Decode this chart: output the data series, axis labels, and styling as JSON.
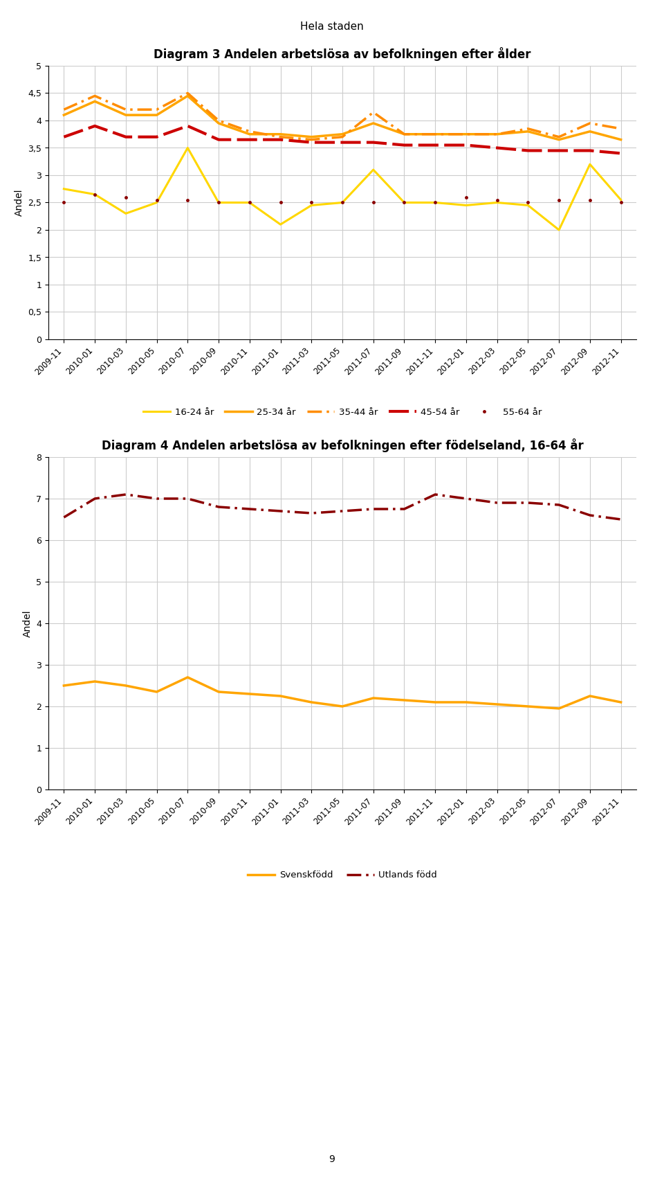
{
  "title_top": "Hela staden",
  "chart1_title": "Diagram 3 Andelen arbetslösa av befolkningen efter ålder",
  "chart2_title": "Diagram 4 Andelen arbetslösa av befolkningen efter födelseland, 16-64 år",
  "page_number": "9",
  "x_labels": [
    "2009-11",
    "2010-01",
    "2010-03",
    "2010-05",
    "2010-07",
    "2010-09",
    "2010-11",
    "2011-01",
    "2011-03",
    "2011-05",
    "2011-07",
    "2011-09",
    "2011-11",
    "2012-01",
    "2012-03",
    "2012-05",
    "2012-07",
    "2012-09",
    "2012-11"
  ],
  "chart1_ylim": [
    0,
    5
  ],
  "chart1_yticks": [
    0,
    0.5,
    1,
    1.5,
    2,
    2.5,
    3,
    3.5,
    4,
    4.5,
    5
  ],
  "chart1_ytick_labels": [
    "0",
    "0,5",
    "1",
    "1,5",
    "2",
    "2,5",
    "3",
    "3,5",
    "4",
    "4,5",
    "5"
  ],
  "chart2_ylim": [
    0,
    8
  ],
  "chart2_yticks": [
    0,
    1,
    2,
    3,
    4,
    5,
    6,
    7,
    8
  ],
  "chart2_ytick_labels": [
    "0",
    "1",
    "2",
    "3",
    "4",
    "5",
    "6",
    "7",
    "8"
  ],
  "series_16_24": [
    2.75,
    2.65,
    2.3,
    2.5,
    3.5,
    2.5,
    2.5,
    2.1,
    2.45,
    2.5,
    3.1,
    2.5,
    2.5,
    2.45,
    2.5,
    2.45,
    2.0,
    3.2,
    2.55
  ],
  "series_25_34": [
    4.1,
    4.35,
    4.1,
    4.1,
    4.45,
    3.95,
    3.75,
    3.75,
    3.7,
    3.75,
    3.95,
    3.75,
    3.75,
    3.75,
    3.75,
    3.8,
    3.65,
    3.8,
    3.65
  ],
  "series_35_44": [
    4.2,
    4.45,
    4.2,
    4.2,
    4.5,
    4.0,
    3.8,
    3.7,
    3.65,
    3.7,
    4.15,
    3.75,
    3.75,
    3.75,
    3.75,
    3.85,
    3.7,
    3.95,
    3.85
  ],
  "series_45_54": [
    3.7,
    3.9,
    3.7,
    3.7,
    3.9,
    3.65,
    3.65,
    3.65,
    3.6,
    3.6,
    3.6,
    3.55,
    3.55,
    3.55,
    3.5,
    3.45,
    3.45,
    3.45,
    3.4
  ],
  "series_55_64": [
    2.5,
    2.65,
    2.6,
    2.55,
    2.55,
    2.5,
    2.5,
    2.5,
    2.5,
    2.5,
    2.5,
    2.5,
    2.5,
    2.6,
    2.55,
    2.5,
    2.55,
    2.55,
    2.5
  ],
  "color_16_24": "#FFD700",
  "color_25_34": "#FFA500",
  "color_35_44": "#FF8C00",
  "color_45_54": "#CC0000",
  "color_55_64": "#8B0000",
  "series_svenskfodd": [
    2.5,
    2.6,
    2.5,
    2.35,
    2.7,
    2.35,
    2.3,
    2.25,
    2.1,
    2.0,
    2.2,
    2.15,
    2.1,
    2.1,
    2.05,
    2.0,
    1.95,
    2.25,
    2.1
  ],
  "series_utlandsfodd": [
    6.55,
    7.0,
    7.1,
    7.0,
    7.0,
    6.8,
    6.75,
    6.7,
    6.65,
    6.7,
    6.75,
    6.75,
    7.1,
    7.0,
    6.9,
    6.9,
    6.85,
    6.6,
    6.5
  ],
  "color_svenskfodd": "#FFA500",
  "color_utlandsfodd": "#8B0000",
  "legend1_labels": [
    "16-24 år",
    "25-34 år",
    "35-44 år",
    "45-54 år",
    "55-64 år"
  ],
  "legend2_labels": [
    "Svenskfödd",
    "Utlands född"
  ],
  "ylabel": "Andel",
  "background_color": "#FFFFFF",
  "grid_color": "#CCCCCC"
}
